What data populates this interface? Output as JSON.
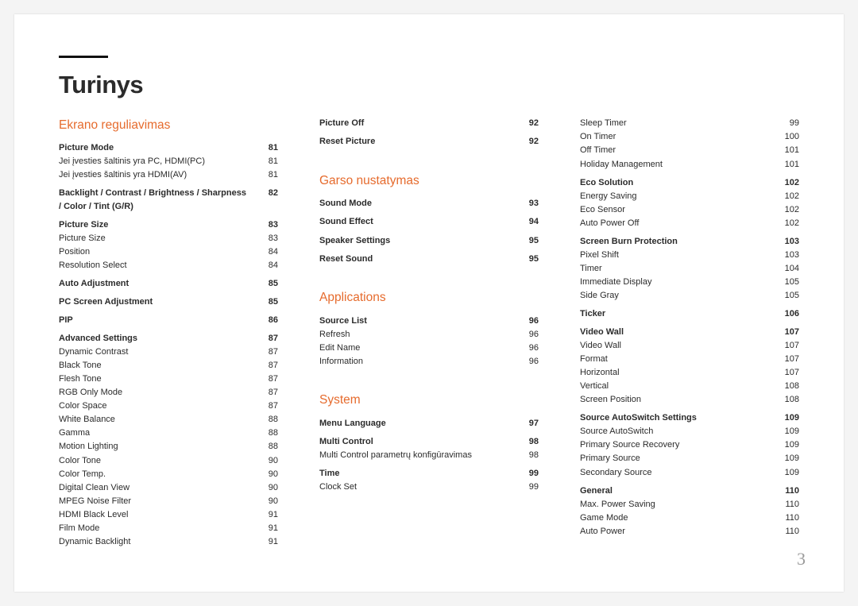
{
  "title": "Turinys",
  "page_number": "3",
  "colors": {
    "accent": "#e66b2d",
    "text": "#2b2b2b",
    "rule": "#111111",
    "bg": "#ffffff",
    "outer_bg": "#f4f4f4",
    "page_num": "#9a9a9a"
  },
  "columns": [
    {
      "items": [
        {
          "type": "section",
          "text": "Ekrano reguliavimas",
          "first": true
        },
        {
          "type": "group",
          "label": "Picture Mode",
          "page": "81"
        },
        {
          "type": "item",
          "label": "Jei įvesties šaltinis yra PC, HDMI(PC)",
          "page": "81"
        },
        {
          "type": "item",
          "label": "Jei įvesties šaltinis yra HDMI(AV)",
          "page": "81"
        },
        {
          "type": "spacer",
          "size": "sm"
        },
        {
          "type": "group",
          "label": "Backlight / Contrast / Brightness / Sharpness / Color / Tint (G/R)",
          "page": "82"
        },
        {
          "type": "spacer",
          "size": "sm"
        },
        {
          "type": "group",
          "label": "Picture Size",
          "page": "83"
        },
        {
          "type": "item",
          "label": "Picture Size",
          "page": "83"
        },
        {
          "type": "item",
          "label": "Position",
          "page": "84"
        },
        {
          "type": "item",
          "label": "Resolution Select",
          "page": "84"
        },
        {
          "type": "spacer",
          "size": "sm"
        },
        {
          "type": "group",
          "label": "Auto Adjustment",
          "page": "85"
        },
        {
          "type": "spacer",
          "size": "sm"
        },
        {
          "type": "group",
          "label": "PC Screen Adjustment",
          "page": "85"
        },
        {
          "type": "spacer",
          "size": "sm"
        },
        {
          "type": "group",
          "label": "PIP",
          "page": "86"
        },
        {
          "type": "spacer",
          "size": "sm"
        },
        {
          "type": "group",
          "label": "Advanced Settings",
          "page": "87"
        },
        {
          "type": "item",
          "label": "Dynamic Contrast",
          "page": "87"
        },
        {
          "type": "item",
          "label": "Black Tone",
          "page": "87"
        },
        {
          "type": "item",
          "label": "Flesh Tone",
          "page": "87"
        },
        {
          "type": "item",
          "label": "RGB Only Mode",
          "page": "87"
        },
        {
          "type": "item",
          "label": "Color Space",
          "page": "87"
        },
        {
          "type": "item",
          "label": "White Balance",
          "page": "88"
        },
        {
          "type": "item",
          "label": "Gamma",
          "page": "88"
        },
        {
          "type": "item",
          "label": "Motion Lighting",
          "page": "88"
        },
        {
          "type": "item",
          "label": "Color Tone",
          "page": "90"
        },
        {
          "type": "item",
          "label": "Color Temp.",
          "page": "90"
        },
        {
          "type": "item",
          "label": "Digital Clean View",
          "page": "90"
        },
        {
          "type": "item",
          "label": "MPEG Noise Filter",
          "page": "90"
        },
        {
          "type": "item",
          "label": "HDMI Black Level",
          "page": "91"
        },
        {
          "type": "item",
          "label": "Film Mode",
          "page": "91"
        },
        {
          "type": "item",
          "label": "Dynamic Backlight",
          "page": "91"
        }
      ]
    },
    {
      "items": [
        {
          "type": "group",
          "label": "Picture Off",
          "page": "92"
        },
        {
          "type": "spacer",
          "size": "sm"
        },
        {
          "type": "group",
          "label": "Reset Picture",
          "page": "92"
        },
        {
          "type": "spacer",
          "size": "md"
        },
        {
          "type": "spacer",
          "size": "md"
        },
        {
          "type": "section",
          "text": "Garso nustatymas"
        },
        {
          "type": "group",
          "label": "Sound Mode",
          "page": "93"
        },
        {
          "type": "spacer",
          "size": "sm"
        },
        {
          "type": "group",
          "label": "Sound Effect",
          "page": "94"
        },
        {
          "type": "spacer",
          "size": "sm"
        },
        {
          "type": "group",
          "label": "Speaker Settings",
          "page": "95"
        },
        {
          "type": "spacer",
          "size": "sm"
        },
        {
          "type": "group",
          "label": "Reset Sound",
          "page": "95"
        },
        {
          "type": "spacer",
          "size": "md"
        },
        {
          "type": "spacer",
          "size": "md"
        },
        {
          "type": "section",
          "text": "Applications"
        },
        {
          "type": "group",
          "label": "Source List",
          "page": "96"
        },
        {
          "type": "item",
          "label": "Refresh",
          "page": "96"
        },
        {
          "type": "item",
          "label": "Edit Name",
          "page": "96"
        },
        {
          "type": "item",
          "label": "Information",
          "page": "96"
        },
        {
          "type": "spacer",
          "size": "md"
        },
        {
          "type": "spacer",
          "size": "md"
        },
        {
          "type": "section",
          "text": "System"
        },
        {
          "type": "group",
          "label": "Menu Language",
          "page": "97"
        },
        {
          "type": "spacer",
          "size": "sm"
        },
        {
          "type": "group",
          "label": "Multi Control",
          "page": "98"
        },
        {
          "type": "item",
          "label": "Multi Control parametrų konfigūravimas",
          "page": "98"
        },
        {
          "type": "spacer",
          "size": "sm"
        },
        {
          "type": "group",
          "label": "Time",
          "page": "99"
        },
        {
          "type": "item",
          "label": "Clock Set",
          "page": "99"
        }
      ]
    },
    {
      "items": [
        {
          "type": "item",
          "label": "Sleep Timer",
          "page": "99"
        },
        {
          "type": "item",
          "label": "On Timer",
          "page": "100"
        },
        {
          "type": "item",
          "label": "Off Timer",
          "page": "101"
        },
        {
          "type": "item",
          "label": "Holiday Management",
          "page": "101"
        },
        {
          "type": "spacer",
          "size": "sm"
        },
        {
          "type": "group",
          "label": "Eco Solution",
          "page": "102"
        },
        {
          "type": "item",
          "label": "Energy Saving",
          "page": "102"
        },
        {
          "type": "item",
          "label": "Eco Sensor",
          "page": "102"
        },
        {
          "type": "item",
          "label": "Auto Power Off",
          "page": "102"
        },
        {
          "type": "spacer",
          "size": "sm"
        },
        {
          "type": "group",
          "label": "Screen Burn Protection",
          "page": "103"
        },
        {
          "type": "item",
          "label": "Pixel Shift",
          "page": "103"
        },
        {
          "type": "item",
          "label": "Timer",
          "page": "104"
        },
        {
          "type": "item",
          "label": "Immediate Display",
          "page": "105"
        },
        {
          "type": "item",
          "label": "Side Gray",
          "page": "105"
        },
        {
          "type": "spacer",
          "size": "sm"
        },
        {
          "type": "group",
          "label": "Ticker",
          "page": "106"
        },
        {
          "type": "spacer",
          "size": "sm"
        },
        {
          "type": "group",
          "label": "Video Wall",
          "page": "107"
        },
        {
          "type": "item",
          "label": "Video Wall",
          "page": "107"
        },
        {
          "type": "item",
          "label": "Format",
          "page": "107"
        },
        {
          "type": "item",
          "label": "Horizontal",
          "page": "107"
        },
        {
          "type": "item",
          "label": "Vertical",
          "page": "108"
        },
        {
          "type": "item",
          "label": "Screen Position",
          "page": "108"
        },
        {
          "type": "spacer",
          "size": "sm"
        },
        {
          "type": "group",
          "label": "Source AutoSwitch Settings",
          "page": "109"
        },
        {
          "type": "item",
          "label": "Source AutoSwitch",
          "page": "109"
        },
        {
          "type": "item",
          "label": "Primary Source Recovery",
          "page": "109"
        },
        {
          "type": "item",
          "label": "Primary Source",
          "page": "109"
        },
        {
          "type": "item",
          "label": "Secondary Source",
          "page": "109"
        },
        {
          "type": "spacer",
          "size": "sm"
        },
        {
          "type": "group",
          "label": "General",
          "page": "110"
        },
        {
          "type": "item",
          "label": "Max. Power Saving",
          "page": "110"
        },
        {
          "type": "item",
          "label": "Game Mode",
          "page": "110"
        },
        {
          "type": "item",
          "label": "Auto Power",
          "page": "110"
        }
      ]
    }
  ]
}
